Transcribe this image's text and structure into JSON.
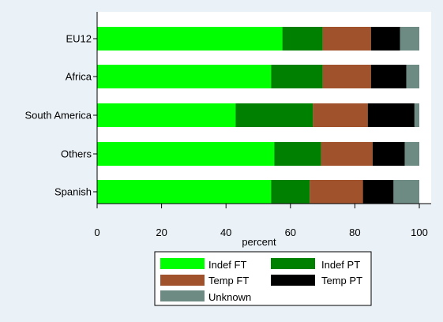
{
  "chart_data": {
    "type": "bar",
    "orientation": "horizontal",
    "stacked": true,
    "categories": [
      "EU12",
      "Africa",
      "South America",
      "Others",
      "Spanish"
    ],
    "series": [
      {
        "name": "Indef FT",
        "color": "#00ff00",
        "values": [
          57.5,
          54,
          43,
          55,
          54
        ]
      },
      {
        "name": "Indef PT",
        "color": "#008000",
        "values": [
          12.5,
          16,
          24,
          14.5,
          12
        ]
      },
      {
        "name": "Temp FT",
        "color": "#a0522d",
        "values": [
          15,
          15,
          17,
          16,
          16.5
        ]
      },
      {
        "name": "Temp PT",
        "color": "#000000",
        "values": [
          9,
          11,
          14.5,
          10,
          9.5
        ]
      },
      {
        "name": "Unknown",
        "color": "#6e8b83",
        "values": [
          6,
          4,
          1.5,
          4.5,
          8
        ]
      }
    ],
    "xlabel": "percent",
    "xlim": [
      0,
      100
    ],
    "xticks": [
      0,
      20,
      40,
      60,
      80,
      100
    ],
    "grid": false,
    "legend_position": "bottom"
  }
}
